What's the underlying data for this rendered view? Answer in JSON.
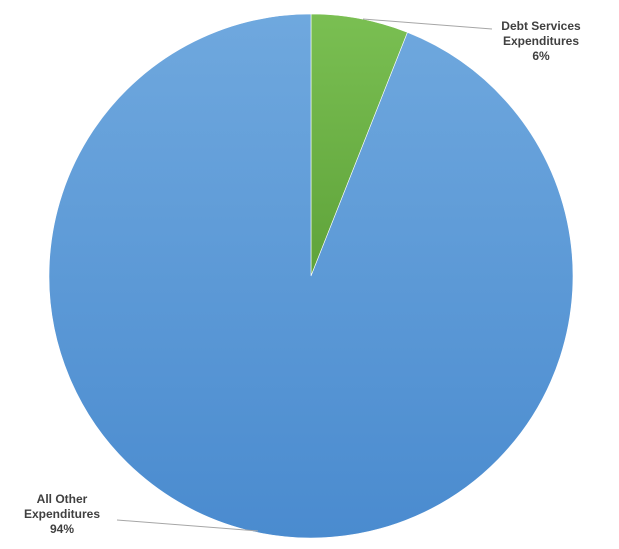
{
  "chart_data": {
    "type": "pie",
    "title": "",
    "slices": [
      {
        "label": "Debt Services Expenditures",
        "label_lines": [
          "Debt Services",
          "Expenditures"
        ],
        "value": 6,
        "value_label": "6%",
        "color": "#6AAE45"
      },
      {
        "label": "All Other Expenditures",
        "label_lines": [
          "All Other",
          "Expenditures"
        ],
        "value": 94,
        "value_label": "94%",
        "color": "#5B9BD5"
      }
    ],
    "start_angle_deg": 0,
    "direction": "clockwise",
    "legend": "none",
    "data_labels": "outside-with-leader-lines"
  }
}
